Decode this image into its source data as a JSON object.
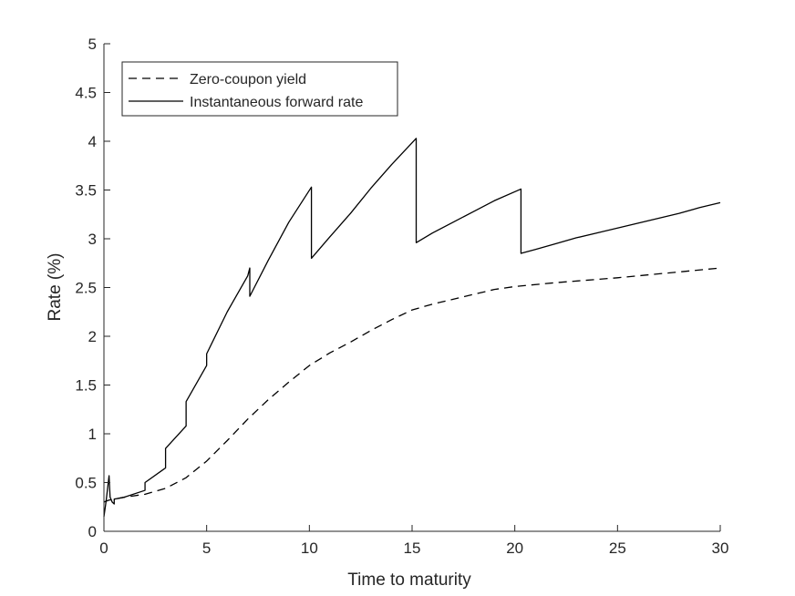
{
  "chart_data": {
    "type": "line",
    "title": "",
    "xlabel": "Time to maturity",
    "ylabel": "Rate (%)",
    "xlim": [
      0,
      30
    ],
    "ylim": [
      0,
      5
    ],
    "xticks": [
      0,
      5,
      10,
      15,
      20,
      25,
      30
    ],
    "yticks": [
      0,
      0.5,
      1,
      1.5,
      2,
      2.5,
      3,
      3.5,
      4,
      4.5,
      5
    ],
    "xtick_labels": [
      "0",
      "5",
      "10",
      "15",
      "20",
      "25",
      "30"
    ],
    "ytick_labels": [
      "0",
      "0.5",
      "1",
      "1.5",
      "2",
      "2.5",
      "3",
      "3.5",
      "4",
      "4.5",
      "5"
    ],
    "grid": false,
    "legend_position": "top-left",
    "series": [
      {
        "name": "Zero-coupon yield",
        "style": "dashed",
        "color": "#000000",
        "x": [
          0,
          0.25,
          0.5,
          1,
          2,
          3,
          4,
          5,
          6,
          7,
          8,
          9,
          10,
          11,
          12,
          13,
          14,
          15,
          16,
          17,
          18,
          19,
          20,
          22,
          25,
          28,
          30
        ],
        "y": [
          0.3,
          0.32,
          0.33,
          0.35,
          0.38,
          0.44,
          0.55,
          0.72,
          0.93,
          1.15,
          1.35,
          1.53,
          1.7,
          1.83,
          1.94,
          2.06,
          2.17,
          2.27,
          2.33,
          2.38,
          2.43,
          2.48,
          2.51,
          2.55,
          2.6,
          2.66,
          2.7
        ]
      },
      {
        "name": "Instantaneous forward rate",
        "style": "solid",
        "color": "#000000",
        "x": [
          0,
          0.1,
          0.25,
          0.3,
          0.4,
          0.5,
          0.5,
          1,
          2,
          2,
          3,
          3,
          4,
          4,
          5,
          5,
          6,
          7,
          7.1,
          7.1,
          8,
          9,
          10.1,
          10.1,
          11,
          12,
          13,
          14,
          15.2,
          15.2,
          16,
          17,
          18,
          19,
          20.3,
          20.3,
          21,
          22,
          23,
          24,
          25,
          26,
          27,
          28,
          29,
          30
        ],
        "y": [
          0.15,
          0.3,
          0.57,
          0.35,
          0.3,
          0.28,
          0.33,
          0.35,
          0.42,
          0.5,
          0.65,
          0.85,
          1.08,
          1.33,
          1.7,
          1.82,
          2.25,
          2.62,
          2.7,
          2.41,
          2.78,
          3.17,
          3.53,
          2.8,
          3.02,
          3.26,
          3.52,
          3.76,
          4.03,
          2.96,
          3.06,
          3.17,
          3.28,
          3.39,
          3.51,
          2.85,
          2.89,
          2.95,
          3.01,
          3.06,
          3.11,
          3.16,
          3.21,
          3.26,
          3.32,
          3.37
        ]
      }
    ]
  }
}
